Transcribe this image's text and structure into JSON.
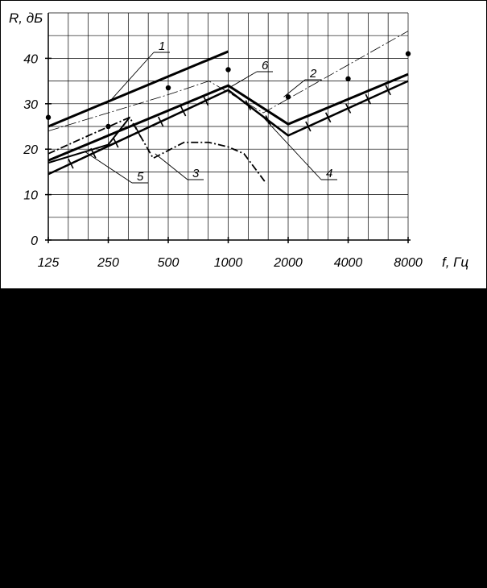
{
  "chart_data": {
    "type": "line",
    "xscale": "log2-octave",
    "x": [
      125,
      250,
      500,
      1000,
      2000,
      4000,
      8000
    ],
    "x_tick_labels": [
      "125",
      "250",
      "500",
      "1000",
      "2000",
      "4000",
      "8000"
    ],
    "y_ticks": [
      0,
      10,
      20,
      30,
      40
    ],
    "ylim": [
      0,
      50
    ],
    "xlabel": "f, Гц",
    "ylabel": "R, дБ",
    "grid": true,
    "series": [
      {
        "name": "1",
        "style": "thick",
        "points": [
          [
            125,
            25
          ],
          [
            1000,
            41.5
          ]
        ]
      },
      {
        "name": "2",
        "style": "thin-dashdot",
        "points": [
          [
            125,
            24
          ],
          [
            250,
            28
          ],
          [
            500,
            32
          ],
          [
            800,
            35
          ],
          [
            1500,
            28
          ],
          [
            8000,
            46
          ]
        ]
      },
      {
        "name": "3",
        "style": "dash-dot",
        "points": [
          [
            125,
            19
          ],
          [
            177,
            22
          ],
          [
            320,
            27
          ],
          [
            420,
            18
          ],
          [
            600,
            21.5
          ],
          [
            800,
            21.5
          ],
          [
            1000,
            20.5
          ],
          [
            1200,
            19
          ],
          [
            1550,
            12.5
          ]
        ]
      },
      {
        "name": "4",
        "style": "thick-ticked",
        "points": [
          [
            125,
            14.5
          ],
          [
            1000,
            33
          ],
          [
            2000,
            23
          ],
          [
            8000,
            35
          ]
        ]
      },
      {
        "name": "5",
        "style": "medium",
        "points": [
          [
            125,
            17
          ],
          [
            250,
            21
          ],
          [
            320,
            27
          ]
        ]
      },
      {
        "name": "6",
        "style": "thick",
        "points": [
          [
            125,
            17.5
          ],
          [
            1000,
            34
          ],
          [
            2000,
            25.5
          ],
          [
            8000,
            36.5
          ]
        ]
      }
    ],
    "points": [
      [
        125,
        27
      ],
      [
        250,
        25
      ],
      [
        500,
        33.5
      ],
      [
        1000,
        37.5
      ],
      [
        2000,
        31.5
      ],
      [
        4000,
        35.5
      ],
      [
        8000,
        41
      ]
    ],
    "callouts": [
      "1",
      "2",
      "3",
      "4",
      "5",
      "6"
    ],
    "colors": {
      "ink": "#000000",
      "background": "#ffffff",
      "outside": "#000000"
    }
  }
}
